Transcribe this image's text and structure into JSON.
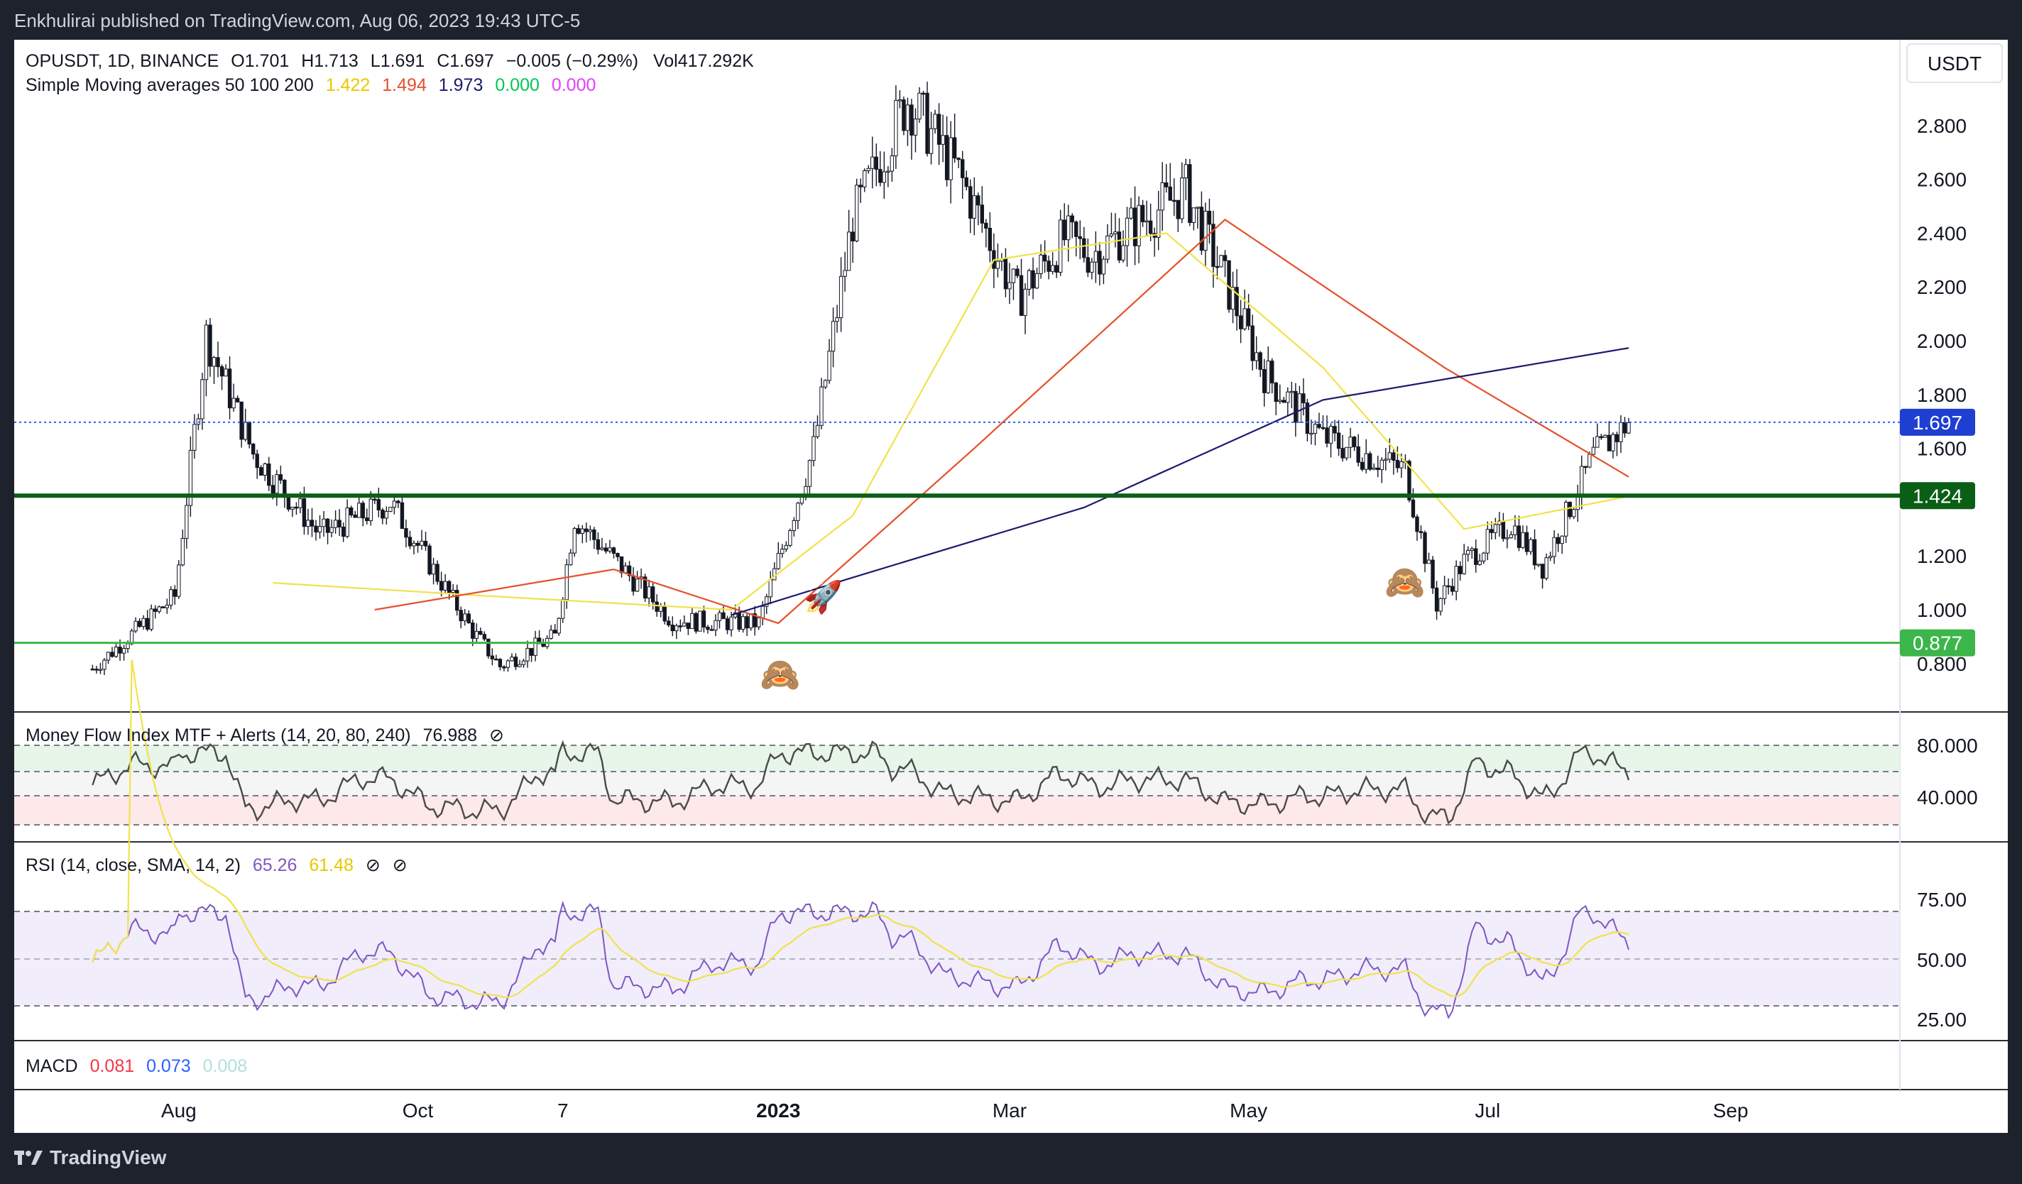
{
  "header": {
    "published": "Enkhulirai published on TradingView.com, Aug 06, 2023 19:43 UTC-5"
  },
  "footer": {
    "brand": "TradingView"
  },
  "price_pane": {
    "symbol": "OPUSDT, 1D, BINANCE",
    "ohlc": [
      {
        "k": "O",
        "v": "1.701"
      },
      {
        "k": "H",
        "v": "1.713"
      },
      {
        "k": "L",
        "v": "1.691"
      },
      {
        "k": "C",
        "v": "1.697"
      }
    ],
    "change": "−0.005 (−0.29%)",
    "vol_label": "Vol",
    "vol_value": "417.292K",
    "sma_label": "Simple Moving averages 50 100 200",
    "sma_values": [
      {
        "v": "1.422",
        "color": "#e8e84a"
      },
      {
        "v": "1.494",
        "color": "#e5502a"
      },
      {
        "v": "1.973",
        "color": "#1a1a6e"
      },
      {
        "v": "0.000",
        "color": "#00c853"
      },
      {
        "v": "0.000",
        "color": "#e040fb"
      }
    ],
    "currency": "USDT",
    "y_ticks": [
      "2.800",
      "2.600",
      "2.400",
      "2.200",
      "2.000",
      "1.800",
      "1.600",
      "1.200",
      "1.000",
      "0.800"
    ],
    "price_tags": [
      {
        "v": "1.697",
        "color": "#1e3fd1"
      },
      {
        "v": "1.424",
        "color": "#0b5e16"
      },
      {
        "v": "0.877",
        "color": "#3cb54a"
      }
    ]
  },
  "mfi_pane": {
    "label": "Money Flow Index MTF + Alerts (14, 20, 80, 240)",
    "value": "76.988",
    "extra": "⊘",
    "y_ticks": [
      "80.000",
      "40.000"
    ]
  },
  "rsi_pane": {
    "label": "RSI (14, close, SMA, 14, 2)",
    "value": "65.26",
    "sma": "61.48",
    "extra1": "⊘",
    "extra2": "⊘",
    "y_ticks": [
      "75.00",
      "50.00",
      "25.00"
    ]
  },
  "macd_pane": {
    "label": "MACD",
    "v1": "0.081",
    "v2": "0.073",
    "v3": "0.008"
  },
  "x_axis": [
    "Aug",
    "Oct",
    "7",
    "2023",
    "Mar",
    "May",
    "Jul",
    "Sep"
  ],
  "chart_data": {
    "type": "line",
    "subtype": "candlestick",
    "symbol": "OPUSDT",
    "timeframe": "1D",
    "exchange": "BINANCE",
    "x": [
      "2022-07-10",
      "2022-07-31",
      "2022-08-08",
      "2022-08-20",
      "2022-09-06",
      "2022-09-24",
      "2022-10-15",
      "2022-10-22",
      "2022-11-05",
      "2022-11-10",
      "2022-12-05",
      "2022-12-27",
      "2023-01-10",
      "2023-01-20",
      "2023-02-03",
      "2023-02-16",
      "2023-03-03",
      "2023-03-15",
      "2023-03-22",
      "2023-04-15",
      "2023-04-25",
      "2023-05-05",
      "2023-05-20",
      "2023-06-10",
      "2023-06-18",
      "2023-06-25",
      "2023-07-07",
      "2023-07-15",
      "2023-07-28",
      "2023-08-06"
    ],
    "close": [
      0.78,
      1.05,
      2.02,
      1.58,
      1.28,
      1.4,
      0.92,
      0.79,
      0.9,
      1.34,
      0.96,
      0.95,
      1.6,
      2.45,
      2.9,
      2.62,
      2.16,
      2.38,
      2.32,
      2.56,
      2.22,
      1.88,
      1.64,
      1.52,
      1.02,
      1.18,
      1.32,
      1.16,
      1.57,
      1.697
    ],
    "sma50": {
      "x": [
        "2022-08-25",
        "2022-10-20",
        "2022-12-20",
        "2023-01-20",
        "2023-02-25",
        "2023-04-10",
        "2023-05-20",
        "2023-06-25",
        "2023-08-06"
      ],
      "y": [
        1.1,
        1.05,
        1.0,
        1.35,
        2.3,
        2.4,
        1.9,
        1.3,
        1.422
      ]
    },
    "sma100": {
      "x": [
        "2022-09-20",
        "2022-11-20",
        "2023-01-01",
        "2023-02-20",
        "2023-04-25",
        "2023-06-20",
        "2023-08-06"
      ],
      "y": [
        1.0,
        1.15,
        0.95,
        1.6,
        2.45,
        1.9,
        1.494
      ]
    },
    "sma200": {
      "x": [
        "2022-12-20",
        "2023-01-20",
        "2023-03-20",
        "2023-05-20",
        "2023-08-06"
      ],
      "y": [
        0.98,
        1.12,
        1.38,
        1.78,
        1.973
      ]
    },
    "levels": [
      1.697,
      1.424,
      0.877
    ],
    "ylim": [
      0.7,
      3.05
    ],
    "x_ticks": [
      "Aug",
      "Oct",
      "7",
      "2023",
      "Mar",
      "May",
      "Jul",
      "Sep"
    ],
    "y_ticks": [
      0.8,
      1.0,
      1.2,
      1.6,
      1.8,
      2.0,
      2.2,
      2.4,
      2.6,
      2.8
    ],
    "grid": false
  }
}
